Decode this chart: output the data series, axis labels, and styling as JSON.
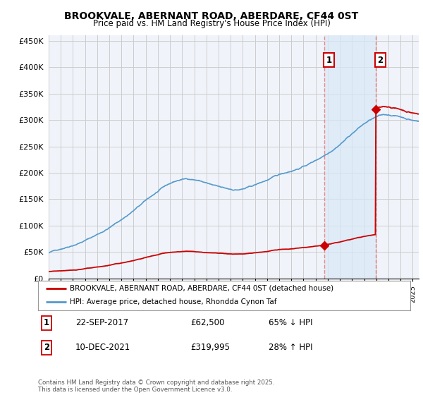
{
  "title": "BROOKVALE, ABERNANT ROAD, ABERDARE, CF44 0ST",
  "subtitle": "Price paid vs. HM Land Registry's House Price Index (HPI)",
  "house_label": "BROOKVALE, ABERNANT ROAD, ABERDARE, CF44 0ST (detached house)",
  "hpi_label": "HPI: Average price, detached house, Rhondda Cynon Taf",
  "house_color": "#cc0000",
  "hpi_color": "#5599cc",
  "vline_color": "#ee8888",
  "shade_color": "#ddeeff",
  "annotation1": {
    "num": "1",
    "date": "22-SEP-2017",
    "price": "£62,500",
    "pct": "65% ↓ HPI"
  },
  "annotation2": {
    "num": "2",
    "date": "10-DEC-2021",
    "price": "£319,995",
    "pct": "28% ↑ HPI"
  },
  "sale1_year": 2017.72,
  "sale2_year": 2021.94,
  "sale1_price": 62500,
  "sale2_price": 319995,
  "ylim": [
    0,
    460000
  ],
  "yticks": [
    0,
    50000,
    100000,
    150000,
    200000,
    250000,
    300000,
    350000,
    400000,
    450000
  ],
  "ytick_labels": [
    "£0",
    "£50K",
    "£100K",
    "£150K",
    "£200K",
    "£250K",
    "£300K",
    "£350K",
    "£400K",
    "£450K"
  ],
  "footer": "Contains HM Land Registry data © Crown copyright and database right 2025.\nThis data is licensed under the Open Government Licence v3.0.",
  "background_color": "#ffffff"
}
